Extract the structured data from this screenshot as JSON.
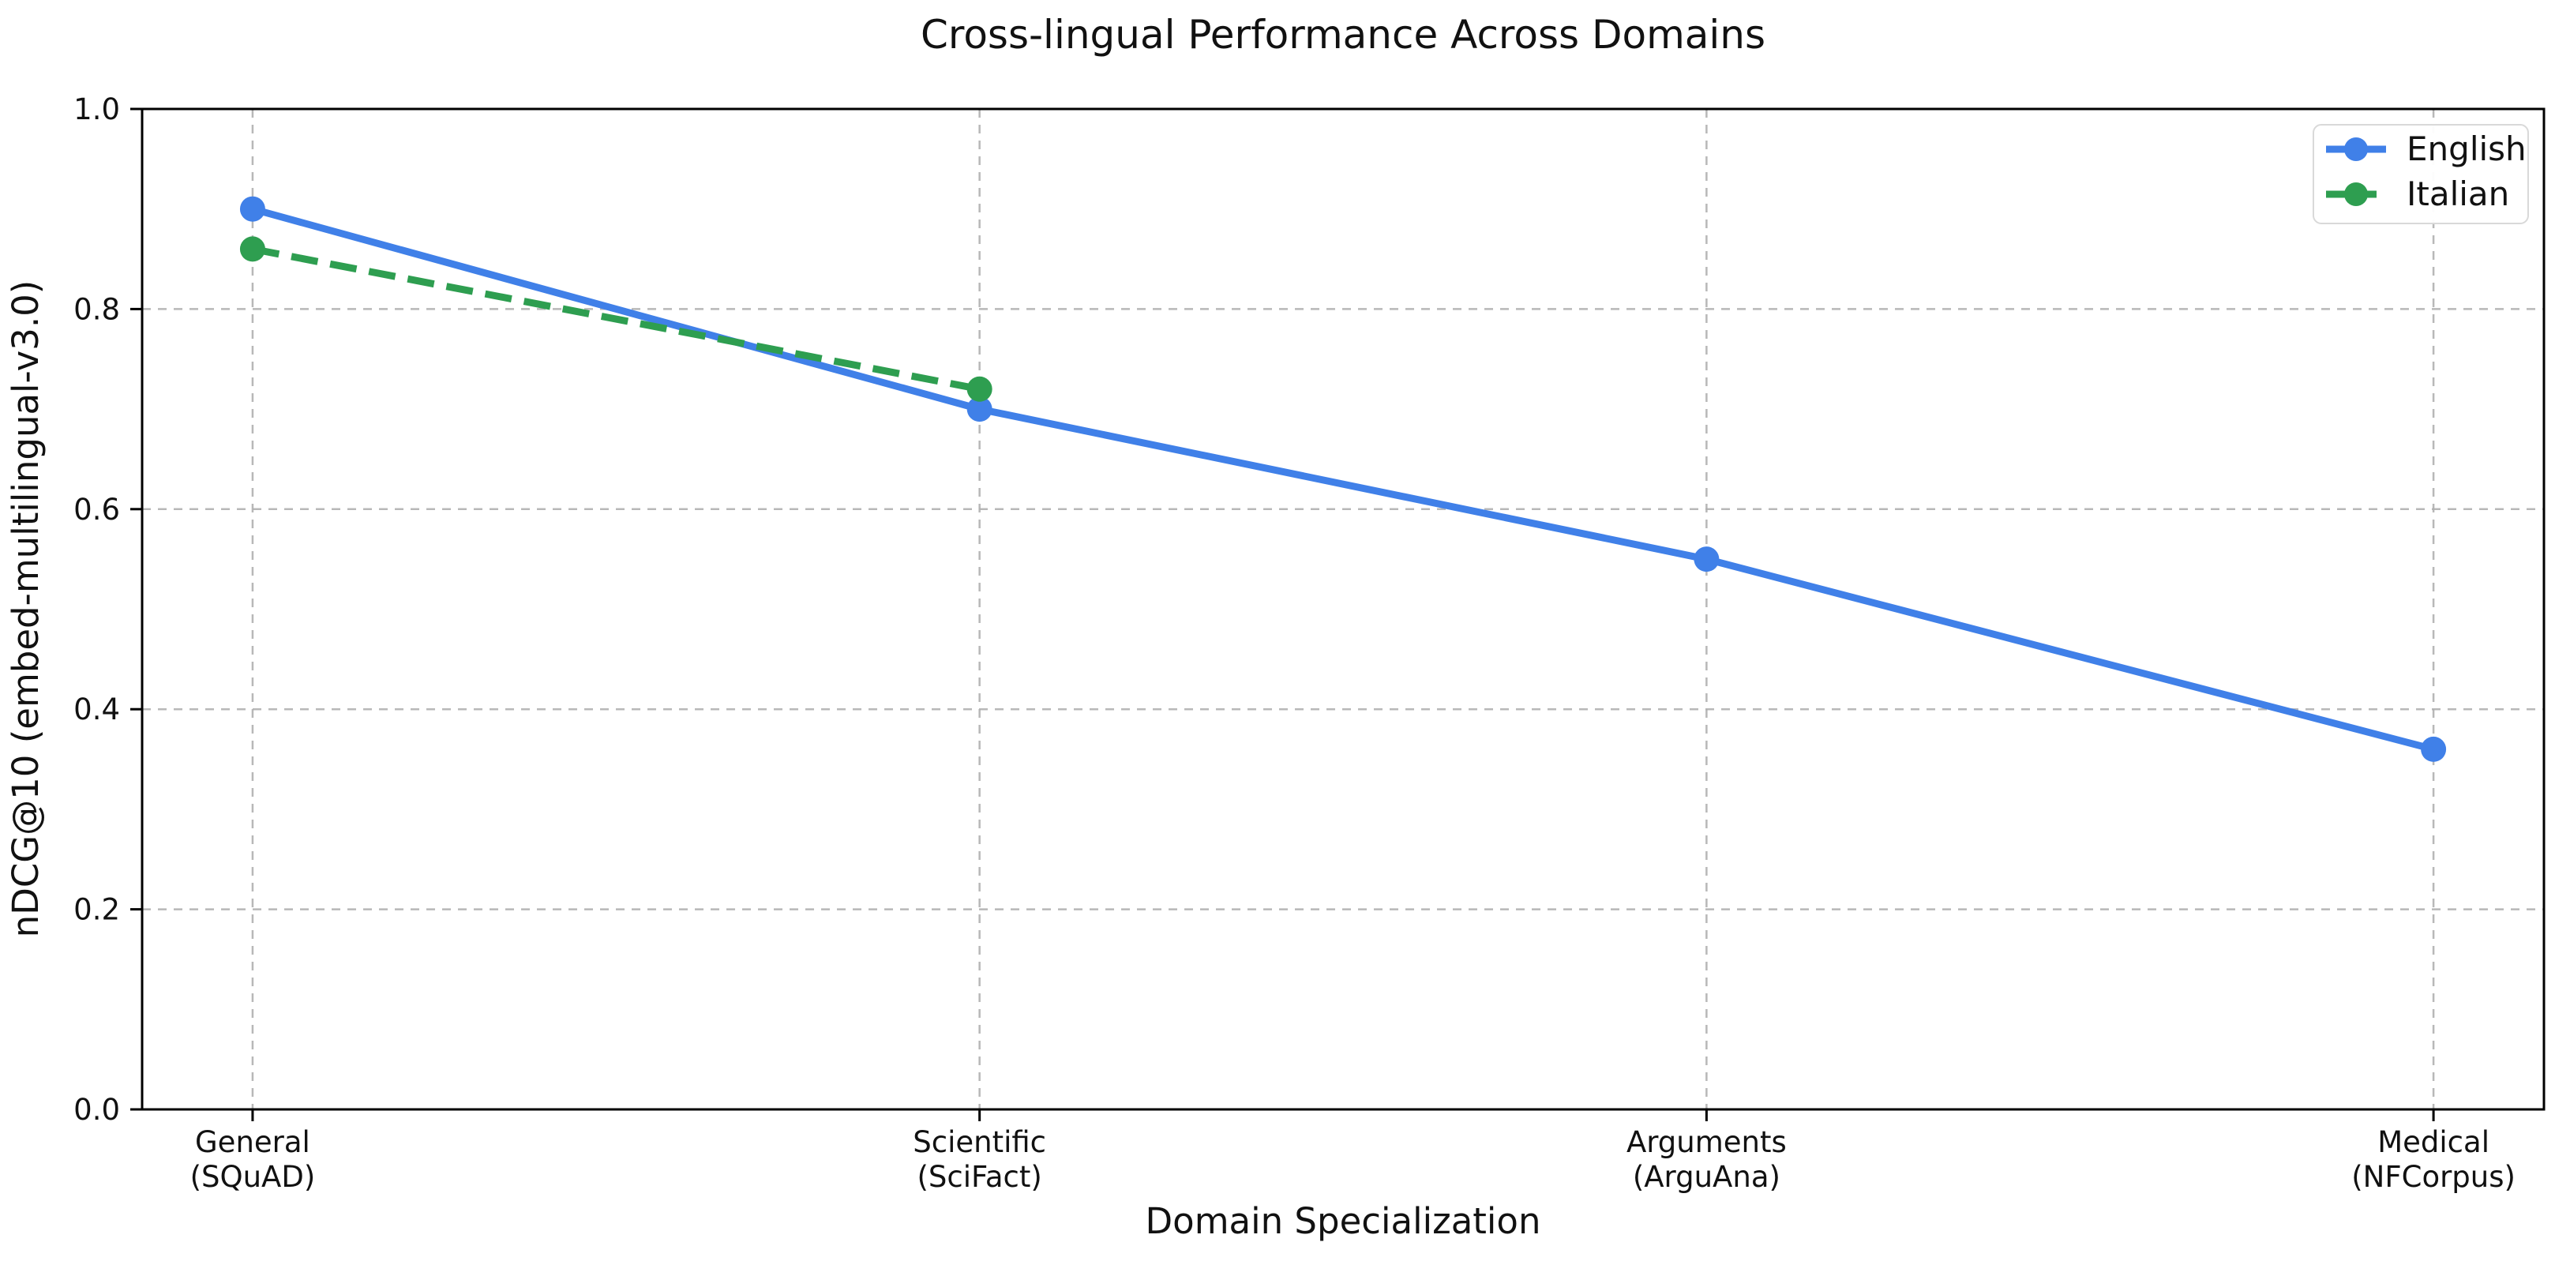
{
  "chart_data": {
    "type": "line",
    "title": "Cross-lingual Performance Across Domains",
    "xlabel": "Domain Specialization",
    "ylabel": "nDCG@10 (embed-multilingual-v3.0)",
    "categories": [
      {
        "label": "General",
        "sublabel": "(SQuAD)"
      },
      {
        "label": "Scientific",
        "sublabel": "(SciFact)"
      },
      {
        "label": "Arguments",
        "sublabel": "(ArguAna)"
      },
      {
        "label": "Medical",
        "sublabel": "(NFCorpus)"
      }
    ],
    "series": [
      {
        "name": "English",
        "color": "#4080e8",
        "line_style": "solid",
        "marker": "circle",
        "values": [
          0.9,
          0.7,
          0.55,
          0.36
        ]
      },
      {
        "name": "Italian",
        "color": "#2e9e50",
        "line_style": "dashed",
        "marker": "circle",
        "values": [
          0.86,
          0.72,
          null,
          null
        ]
      }
    ],
    "ylim": [
      0.0,
      1.0
    ],
    "yticks": [
      "0.0",
      "0.2",
      "0.4",
      "0.6",
      "0.8",
      "1.0"
    ],
    "grid": true,
    "grid_style": "dashed",
    "grid_color": "#b0b0b0",
    "legend_position": "upper right",
    "axes_color": "#000000",
    "background_color": "#ffffff"
  }
}
